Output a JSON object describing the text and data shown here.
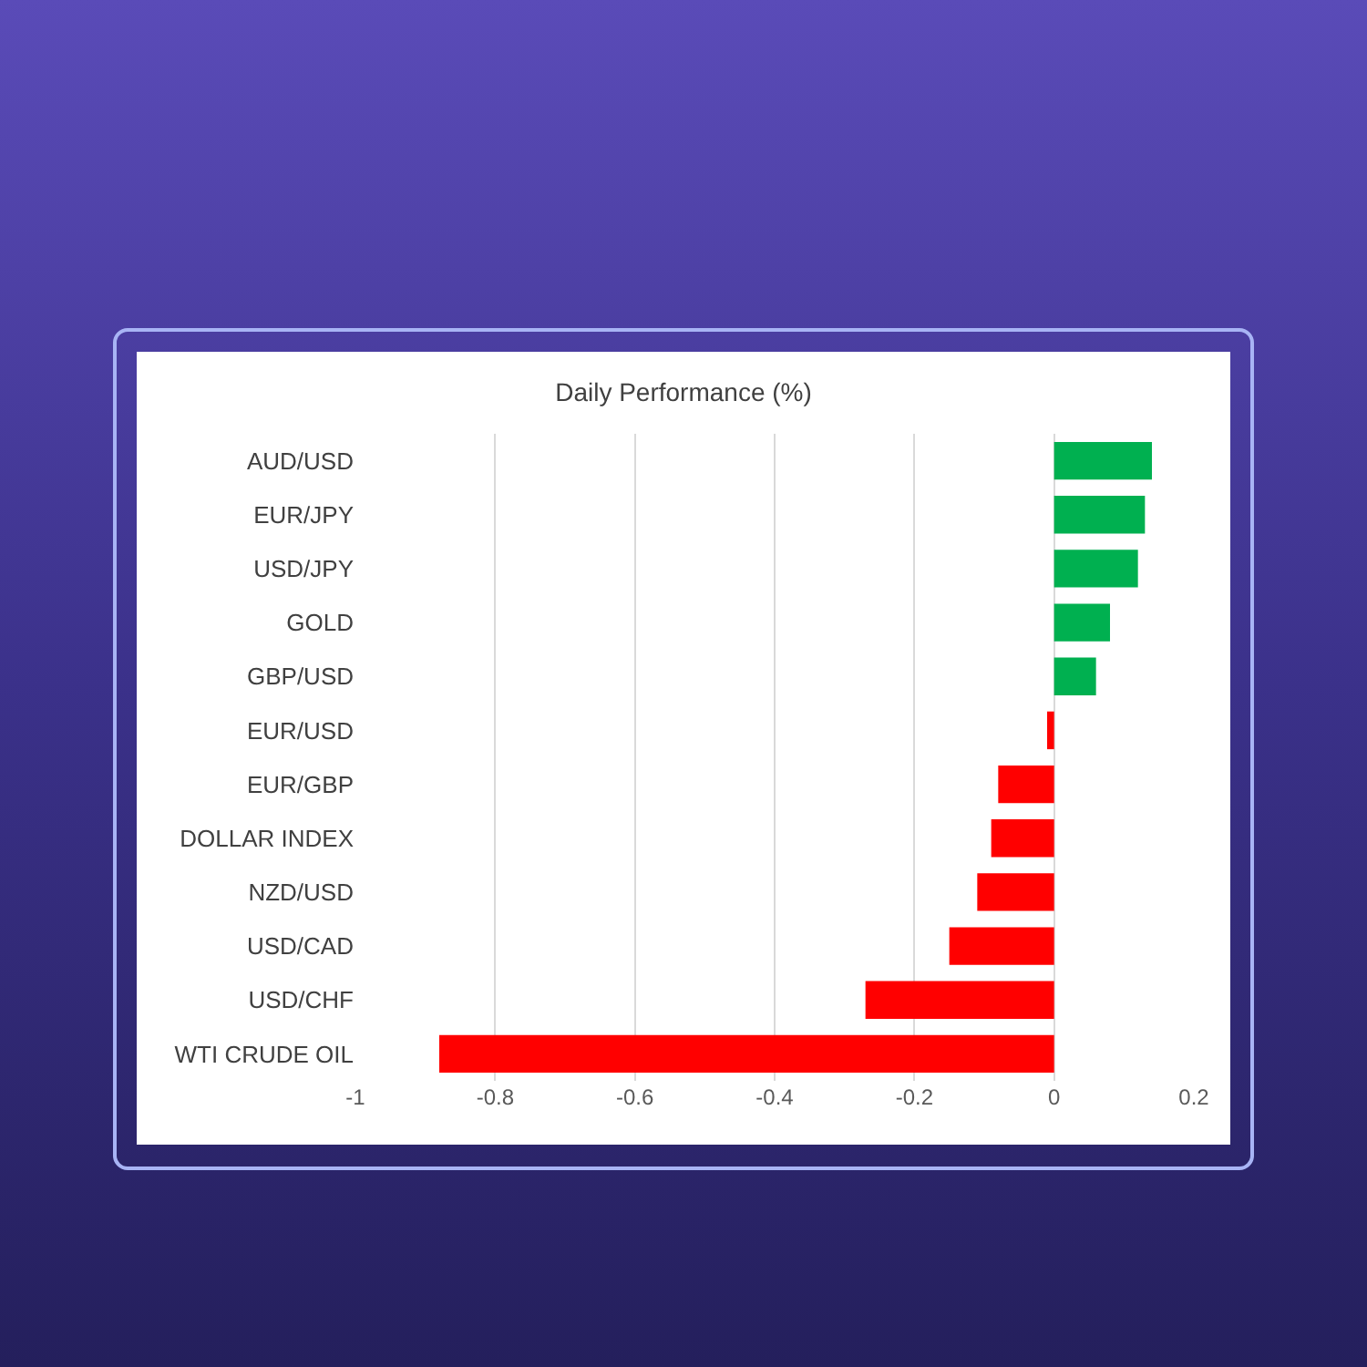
{
  "chart_data": {
    "type": "bar",
    "orientation": "horizontal",
    "title": "Daily Performance (%)",
    "categories": [
      "AUD/USD",
      "EUR/JPY",
      "USD/JPY",
      "GOLD",
      "GBP/USD",
      "EUR/USD",
      "EUR/GBP",
      "DOLLAR INDEX",
      "NZD/USD",
      "USD/CAD",
      "USD/CHF",
      "WTI CRUDE OIL"
    ],
    "values": [
      0.14,
      0.13,
      0.12,
      0.08,
      0.06,
      -0.01,
      -0.08,
      -0.09,
      -0.11,
      -0.15,
      -0.27,
      -0.88
    ],
    "colors": [
      "#00b050",
      "#00b050",
      "#00b050",
      "#00b050",
      "#00b050",
      "#ff0000",
      "#ff0000",
      "#ff0000",
      "#ff0000",
      "#ff0000",
      "#ff0000",
      "#ff0000"
    ],
    "xlim": [
      -1,
      0.2
    ],
    "xticks": [
      -1,
      -0.8,
      -0.6,
      -0.4,
      -0.2,
      0,
      0.2
    ],
    "grid": "x",
    "legend": false
  }
}
